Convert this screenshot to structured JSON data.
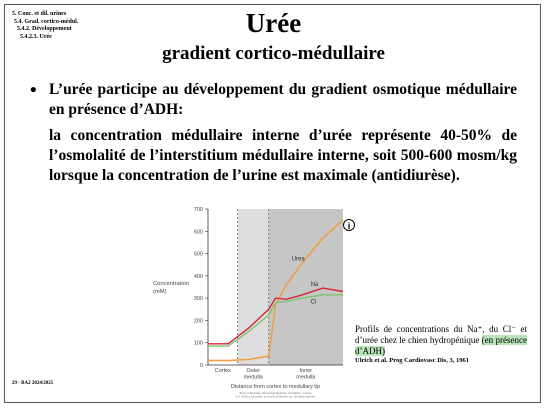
{
  "breadcrumb": [
    "5. Conc. et dil. urines",
    "5.4. Grad. cortico-médul.",
    "5.4.2. Développement",
    "5.4.2.3. Urée"
  ],
  "title": "Urée",
  "subtitle": "gradient cortico-médullaire",
  "bullet": "•",
  "paragraph1": "L’urée participe au développement du gradient osmotique médullaire en présence d’ADH:",
  "paragraph2": "la concentration médullaire interne d’urée représente 40-50% de l’osmolalité de l’interstitium médullaire interne, soit 500-600 mosm/kg lorsque la concentration de l’urine est maximale (antidiurèse).",
  "info_icon": "i",
  "caption": {
    "text": "Profils de concentrations du Na⁺, du Cl⁻ et d’urée chez le chien hydropénique",
    "highlight": "(en présence d’ADH)",
    "highlight_color": "#b9e3b9",
    "reference": "Ulrich et al. Prog Cardiovasc Dis, 3, 1961"
  },
  "footer": "29 - BA2 2024/2025",
  "chart_data": {
    "type": "line",
    "ylabel": "Concentration (mM)",
    "xlabel": "Distance from cortex to medullary tip",
    "ylim": [
      0,
      700
    ],
    "yticks": [
      0,
      100,
      200,
      300,
      400,
      500,
      600,
      700
    ],
    "regions": [
      "Cortex",
      "Outer medulla",
      "Inner medulla"
    ],
    "region_colors": [
      "#ffffff",
      "#dedede",
      "#c6c6c6"
    ],
    "x": [
      0,
      0.15,
      0.3,
      0.45,
      0.5,
      0.58,
      0.7,
      0.85,
      1.0
    ],
    "series": [
      {
        "name": "Urea",
        "color": "#f29a35",
        "values": [
          20,
          20,
          25,
          40,
          270,
          360,
          460,
          570,
          650
        ]
      },
      {
        "name": "Na",
        "color": "#d4243c",
        "values": [
          95,
          95,
          165,
          250,
          300,
          295,
          315,
          345,
          330
        ]
      },
      {
        "name": "Cl",
        "color": "#7cc66c",
        "values": [
          85,
          85,
          150,
          225,
          280,
          285,
          300,
          315,
          315
        ]
      }
    ],
    "copyright": "Boron & Boulpaep: Physiologie Médicale, 2nd Edition. Copyright © 2009 by Saunders, an imprint of Elsevier, Inc. All rights reserved."
  }
}
